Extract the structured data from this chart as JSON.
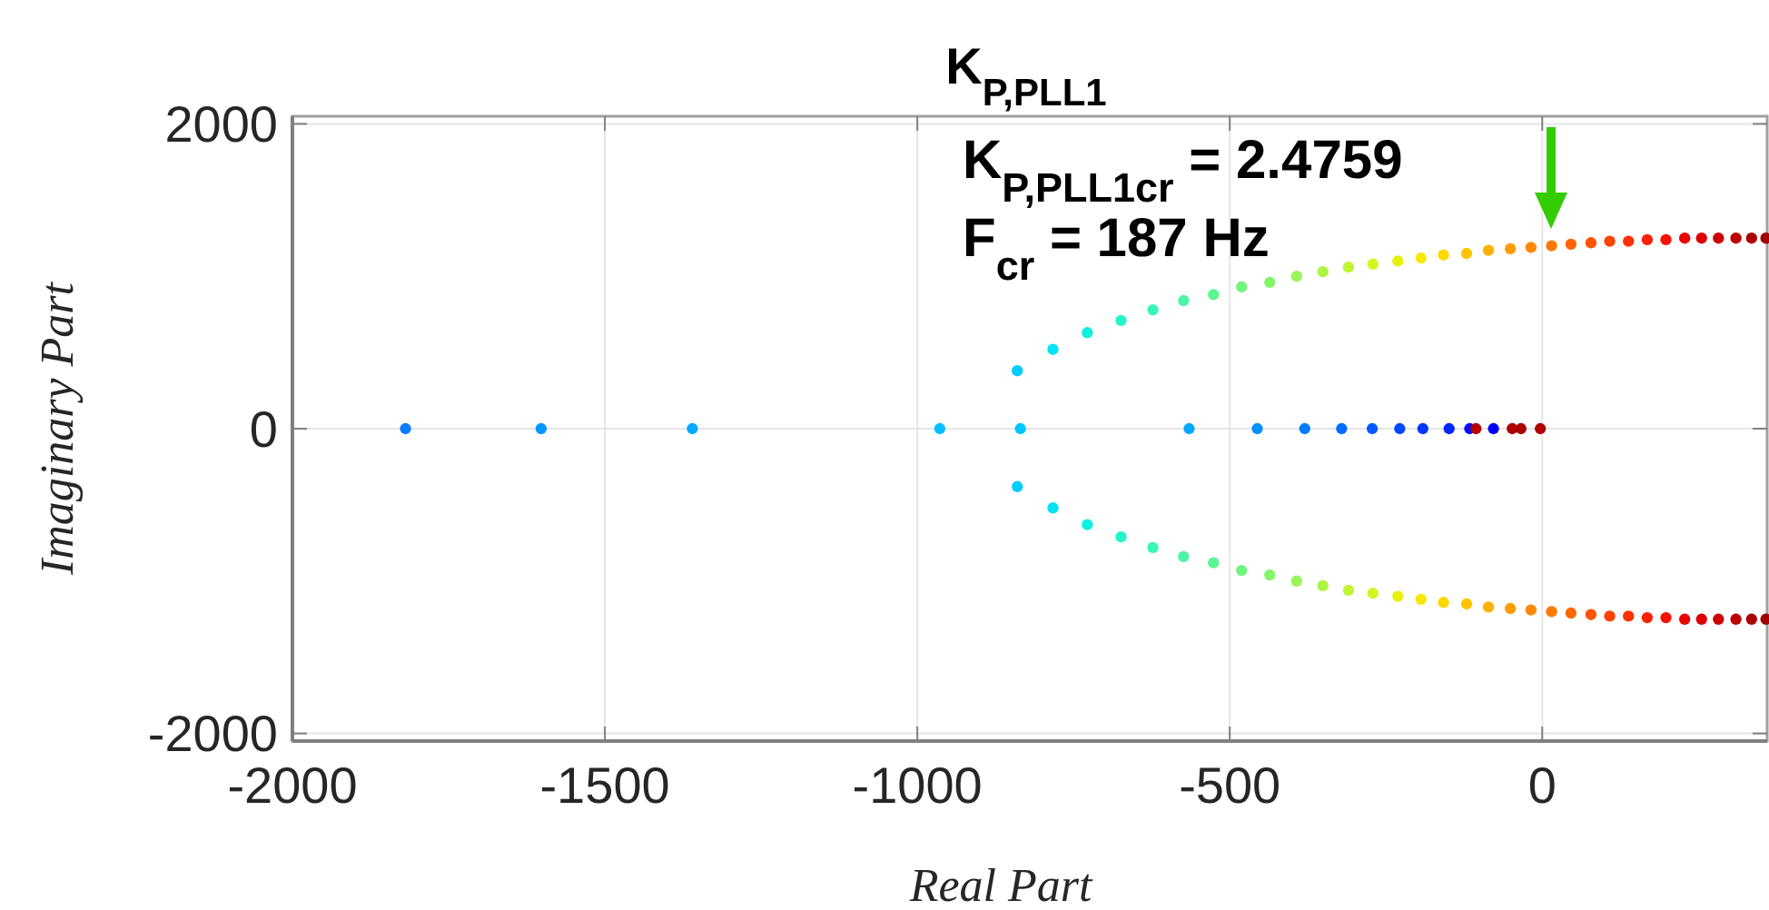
{
  "chart_data": {
    "type": "scatter",
    "title": "K$_{P,PLL1}$",
    "xlabel": "Real Part",
    "ylabel": "Imaginary Part",
    "xlim": [
      -2000,
      360
    ],
    "ylim": [
      -2050,
      2050
    ],
    "xticks": [
      -2000,
      -1500,
      -1000,
      -500,
      0
    ],
    "yticks": [
      -2000,
      0,
      2000
    ],
    "grid": true,
    "marker": "circle",
    "annotations": [
      {
        "text": "K$_{P,PLL1cr}$ = 2.4759"
      },
      "F$_{cr}$ = 187 Hz"
    ],
    "series": [
      {
        "x": [
          -840,
          -783,
          -728,
          -674,
          -623,
          -574,
          -526,
          -481,
          -436,
          -393,
          -351,
          -310,
          -271,
          -231,
          -194,
          -158,
          -121,
          -86,
          -51,
          -18,
          15,
          46,
          78,
          108,
          138,
          168,
          198,
          228,
          255,
          282,
          310,
          335,
          358
        ],
        "values": [
          380,
          520,
          630,
          710,
          780,
          840,
          880,
          930,
          960,
          1000,
          1030,
          1060,
          1080,
          1100,
          1120,
          1140,
          1150,
          1170,
          1180,
          1190,
          1200,
          1210,
          1220,
          1230,
          1230,
          1240,
          1240,
          1250,
          1250,
          1250,
          1250,
          1250,
          1250
        ],
        "colors": [
          "#00ccff",
          "#00e4f4",
          "#10f0e0",
          "#25f5cc",
          "#38f5b8",
          "#4cf5a5",
          "#5cf592",
          "#70f57f",
          "#85f56a",
          "#98f558",
          "#acf545",
          "#c0f532",
          "#d4f520",
          "#e8f00e",
          "#fae800",
          "#ffd800",
          "#ffc400",
          "#ffb000",
          "#ff9c00",
          "#ff8a00",
          "#ff7800",
          "#ff6600",
          "#ff5400",
          "#ff4200",
          "#ff3000",
          "#ff2000",
          "#f81000",
          "#ec0000",
          "#dc0000",
          "#cc0000",
          "#bc0000",
          "#ac0000",
          "#a00000"
        ]
      },
      {
        "x": [
          -840,
          -783,
          -728,
          -674,
          -623,
          -574,
          -526,
          -481,
          -436,
          -393,
          -351,
          -310,
          -271,
          -231,
          -194,
          -158,
          -121,
          -86,
          -51,
          -18,
          15,
          46,
          78,
          108,
          138,
          168,
          198,
          228,
          255,
          282,
          310,
          335,
          358
        ],
        "values": [
          -380,
          -520,
          -630,
          -710,
          -780,
          -840,
          -880,
          -930,
          -960,
          -1000,
          -1030,
          -1060,
          -1080,
          -1100,
          -1120,
          -1140,
          -1150,
          -1170,
          -1180,
          -1190,
          -1200,
          -1210,
          -1220,
          -1230,
          -1230,
          -1240,
          -1240,
          -1250,
          -1250,
          -1250,
          -1250,
          -1250,
          -1250
        ],
        "colors": [
          "#00ccff",
          "#00e4f4",
          "#10f0e0",
          "#25f5cc",
          "#38f5b8",
          "#4cf5a5",
          "#5cf592",
          "#70f57f",
          "#85f56a",
          "#98f558",
          "#acf545",
          "#c0f532",
          "#d4f520",
          "#e8f00e",
          "#fae800",
          "#ffd800",
          "#ffc400",
          "#ffb000",
          "#ff9c00",
          "#ff8a00",
          "#ff7800",
          "#ff6600",
          "#ff5400",
          "#ff4200",
          "#ff3000",
          "#ff2000",
          "#f81000",
          "#ec0000",
          "#dc0000",
          "#cc0000",
          "#bc0000",
          "#ac0000",
          "#a00000"
        ]
      },
      {
        "x": [
          -1819,
          -1602,
          -1360,
          -964,
          -835,
          -565,
          -456,
          -380,
          -321,
          -272,
          -228,
          -191,
          -149,
          -116,
          -106,
          -78,
          -48,
          -34,
          -3
        ],
        "values": [
          0,
          0,
          0,
          0,
          0,
          0,
          0,
          0,
          0,
          0,
          0,
          0,
          0,
          0,
          0,
          0,
          0,
          0,
          0
        ],
        "colors": [
          "#0a7cff",
          "#0096ff",
          "#00aaff",
          "#00bfff",
          "#00c8ff",
          "#00a8ff",
          "#0090ff",
          "#007cff",
          "#006cff",
          "#005aff",
          "#0048ff",
          "#0036ff",
          "#0024ff",
          "#0010ff",
          "#b40000",
          "#0000f0",
          "#b00000",
          "#aa0000",
          "#b00000"
        ]
      }
    ]
  }
}
